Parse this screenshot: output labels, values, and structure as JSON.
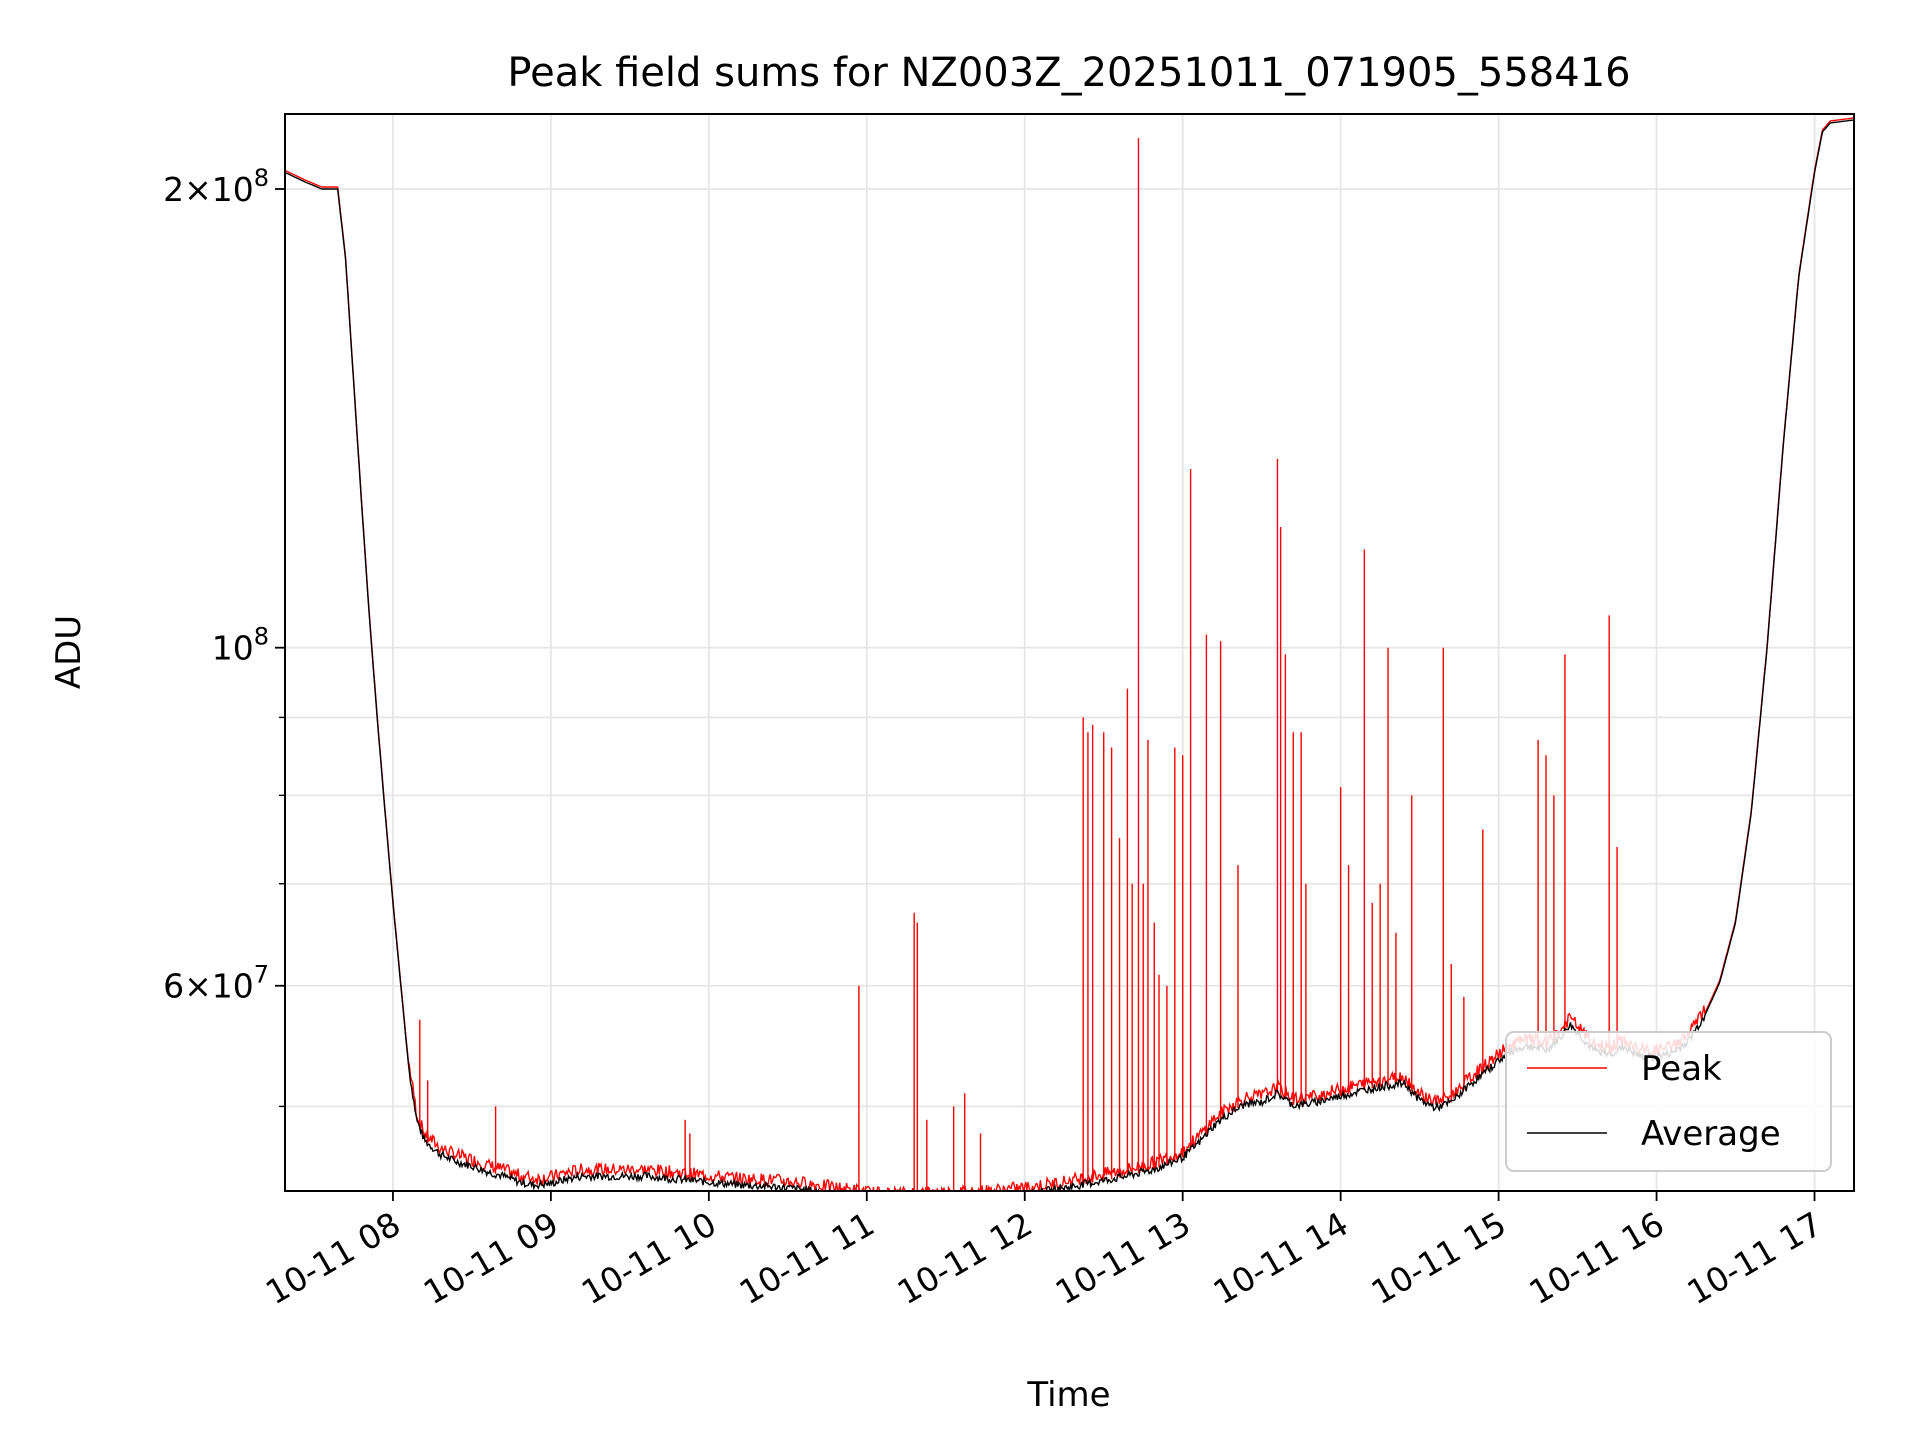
{
  "chart_data": {
    "type": "line",
    "title": "Peak field sums for NZ003Z_20251011_071905_558416",
    "xlabel": "Time",
    "ylabel": "ADU",
    "y_scale": "log",
    "x_unit": "hour",
    "xlim": [
      "10-11 07:19",
      "10-11 17:15"
    ],
    "ylim": [
      44000000,
      224000000
    ],
    "x_ticks": [
      "10-11 08",
      "10-11 09",
      "10-11 10",
      "10-11 11",
      "10-11 12",
      "10-11 13",
      "10-11 14",
      "10-11 15",
      "10-11 16",
      "10-11 17"
    ],
    "y_ticks": [
      {
        "value": 200000000,
        "mantissa": "2",
        "exponent": "8"
      },
      {
        "value": 100000000,
        "mantissa": "",
        "exponent": "8"
      },
      {
        "value": 60000000,
        "mantissa": "6",
        "exponent": "7"
      }
    ],
    "grid": true,
    "legend_position": "lower right",
    "series": [
      {
        "name": "Average",
        "color": "#000000",
        "x": [
          7.32,
          7.45,
          7.55,
          7.65,
          7.7,
          7.75,
          7.8,
          7.85,
          7.9,
          7.95,
          8.0,
          8.05,
          8.1,
          8.15,
          8.2,
          8.3,
          8.4,
          8.5,
          8.6,
          8.7,
          8.8,
          8.9,
          9.0,
          9.1,
          9.2,
          9.4,
          9.6,
          9.8,
          10.0,
          10.2,
          10.4,
          10.6,
          10.8,
          10.95,
          11.0,
          11.1,
          11.2,
          11.4,
          11.6,
          11.8,
          12.0,
          12.2,
          12.4,
          12.6,
          12.8,
          12.9,
          13.0,
          13.1,
          13.2,
          13.3,
          13.4,
          13.5,
          13.6,
          13.7,
          13.8,
          14.0,
          14.2,
          14.4,
          14.5,
          14.6,
          14.7,
          14.8,
          14.9,
          15.0,
          15.1,
          15.2,
          15.3,
          15.4,
          15.45,
          15.5,
          15.6,
          15.7,
          15.8,
          15.85,
          15.9,
          16.0,
          16.1,
          16.2,
          16.3,
          16.4,
          16.5,
          16.6,
          16.7,
          16.8,
          16.9,
          17.0,
          17.05,
          17.1,
          17.25
        ],
        "y": [
          205000000,
          202000000,
          200000000,
          200000000,
          180000000,
          150000000,
          125000000,
          105000000,
          90000000,
          78000000,
          68000000,
          60000000,
          53000000,
          49000000,
          47500000,
          46500000,
          46000000,
          45700000,
          45300000,
          45000000,
          44600000,
          44400000,
          44500000,
          44800000,
          45000000,
          45000000,
          45000000,
          44800000,
          44600000,
          44400000,
          44300000,
          44100000,
          43800000,
          43600000,
          43500000,
          43400000,
          43400000,
          43500000,
          43500000,
          43600000,
          43800000,
          44100000,
          44500000,
          44900000,
          45400000,
          45800000,
          46300000,
          47300000,
          48600000,
          49500000,
          50200000,
          50300000,
          51000000,
          50100000,
          50200000,
          50800000,
          51400000,
          51800000,
          50500000,
          49900000,
          50300000,
          51500000,
          52500000,
          53600000,
          54500000,
          54800000,
          54400000,
          55600000,
          56600000,
          55900000,
          54400000,
          54100000,
          54700000,
          54200000,
          53900000,
          53900000,
          54200000,
          55200000,
          57200000,
          60300000,
          66000000,
          78000000,
          100000000,
          135000000,
          175000000,
          205000000,
          218000000,
          221000000,
          222000000
        ]
      },
      {
        "name": "Peak",
        "color": "#ff0000",
        "spikes_x": [
          8.17,
          8.22,
          8.65,
          9.85,
          9.88,
          10.95,
          11.3,
          11.32,
          11.38,
          11.55,
          11.62,
          11.72,
          12.37,
          12.4,
          12.43,
          12.5,
          12.55,
          12.6,
          12.65,
          12.68,
          12.72,
          12.75,
          12.78,
          12.82,
          12.85,
          12.9,
          12.95,
          13.0,
          13.05,
          13.15,
          13.24,
          13.35,
          13.6,
          13.62,
          13.65,
          13.7,
          13.75,
          13.78,
          14.0,
          14.05,
          14.15,
          14.2,
          14.25,
          14.3,
          14.35,
          14.45,
          14.65,
          14.7,
          14.78,
          14.9,
          15.25,
          15.3,
          15.35,
          15.42,
          15.7,
          15.75
        ],
        "spikes_y": [
          57000000,
          52000000,
          50000000,
          49000000,
          48000000,
          60000000,
          67000000,
          66000000,
          49000000,
          50000000,
          51000000,
          48000000,
          90000000,
          88000000,
          89000000,
          88000000,
          86000000,
          75000000,
          94000000,
          70000000,
          216000000,
          70000000,
          87000000,
          66000000,
          61000000,
          60000000,
          86000000,
          85000000,
          131000000,
          102000000,
          101000000,
          72000000,
          133000000,
          120000000,
          99000000,
          88000000,
          88000000,
          70000000,
          81000000,
          72000000,
          116000000,
          68000000,
          70000000,
          100000000,
          65000000,
          80000000,
          100000000,
          62000000,
          59000000,
          76000000,
          87000000,
          85000000,
          80000000,
          99000000,
          105000000,
          74000000
        ]
      }
    ]
  }
}
